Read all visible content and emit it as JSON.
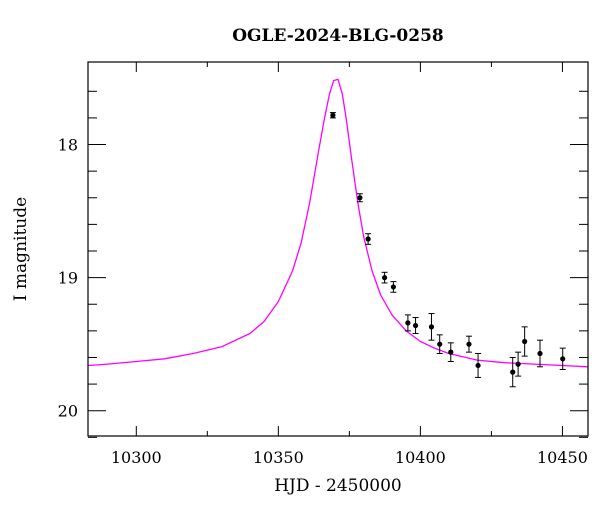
{
  "chart_data": {
    "type": "scatter",
    "title": "OGLE-2024-BLG-0258",
    "xlabel": "HJD - 2450000",
    "ylabel": "I magnitude",
    "xlim": [
      10283,
      10459
    ],
    "ylim": [
      20.19,
      17.38
    ],
    "y_inverted": true,
    "x_major_ticks": [
      10300,
      10350,
      10400,
      10450
    ],
    "x_minor_ticks": [
      10325,
      10375,
      10425
    ],
    "y_major_ticks": [
      18,
      19,
      20
    ],
    "y_minor_ticks": [
      17.6,
      17.8,
      18.2,
      18.4,
      18.6,
      18.8,
      19.2,
      19.4,
      19.6,
      19.8,
      20.2
    ],
    "grid": false,
    "series": [
      {
        "kind": "points_with_errorbars",
        "color": "#000000",
        "points": [
          {
            "x": 10369.2,
            "y": 17.78,
            "err": 0.02
          },
          {
            "x": 10378.7,
            "y": 18.4,
            "err": 0.03
          },
          {
            "x": 10381.6,
            "y": 18.71,
            "err": 0.04
          },
          {
            "x": 10387.4,
            "y": 19.0,
            "err": 0.04
          },
          {
            "x": 10390.5,
            "y": 19.07,
            "err": 0.04
          },
          {
            "x": 10395.6,
            "y": 19.34,
            "err": 0.06
          },
          {
            "x": 10398.3,
            "y": 19.36,
            "err": 0.06
          },
          {
            "x": 10403.9,
            "y": 19.37,
            "err": 0.1
          },
          {
            "x": 10406.8,
            "y": 19.5,
            "err": 0.07
          },
          {
            "x": 10410.7,
            "y": 19.56,
            "err": 0.07
          },
          {
            "x": 10417.1,
            "y": 19.5,
            "err": 0.06
          },
          {
            "x": 10420.3,
            "y": 19.66,
            "err": 0.09
          },
          {
            "x": 10432.5,
            "y": 19.71,
            "err": 0.11
          },
          {
            "x": 10434.4,
            "y": 19.65,
            "err": 0.09
          },
          {
            "x": 10436.7,
            "y": 19.48,
            "err": 0.11
          },
          {
            "x": 10442.1,
            "y": 19.57,
            "err": 0.1
          },
          {
            "x": 10450.1,
            "y": 19.61,
            "err": 0.08
          }
        ]
      },
      {
        "kind": "model_curve",
        "color": "#ff00ff",
        "x": [
          10283,
          10290,
          10300,
          10310,
          10320,
          10330,
          10340,
          10345,
          10350,
          10355,
          10358,
          10361,
          10364,
          10366,
          10368,
          10369.5,
          10371,
          10372.5,
          10374,
          10376,
          10378,
          10380,
          10383,
          10386,
          10390,
          10395,
          10400,
          10405,
          10410,
          10420,
          10430,
          10440,
          10450,
          10459
        ],
        "y": [
          19.66,
          19.65,
          19.63,
          19.61,
          19.57,
          19.52,
          19.42,
          19.33,
          19.18,
          18.95,
          18.74,
          18.44,
          18.07,
          17.83,
          17.62,
          17.52,
          17.51,
          17.62,
          17.82,
          18.14,
          18.44,
          18.69,
          18.95,
          19.13,
          19.28,
          19.4,
          19.48,
          19.53,
          19.57,
          19.62,
          19.64,
          19.65,
          19.66,
          19.67
        ]
      }
    ]
  }
}
